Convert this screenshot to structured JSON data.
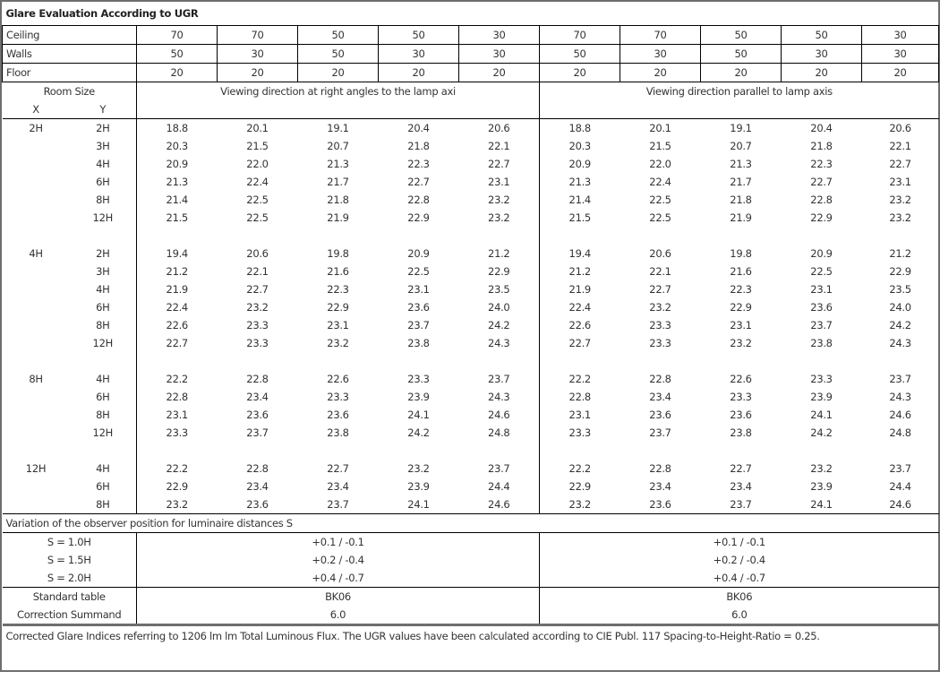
{
  "title": "Glare Evaluation According to UGR",
  "reflectances": [
    {
      "label": "Ceiling",
      "values": [
        "70",
        "70",
        "50",
        "50",
        "30",
        "70",
        "70",
        "50",
        "50",
        "30"
      ]
    },
    {
      "label": "Walls",
      "values": [
        "50",
        "30",
        "50",
        "30",
        "30",
        "50",
        "30",
        "50",
        "30",
        "30"
      ]
    },
    {
      "label": "Floor",
      "values": [
        "20",
        "20",
        "20",
        "20",
        "20",
        "20",
        "20",
        "20",
        "20",
        "20"
      ]
    }
  ],
  "room_size_label": "Room Size",
  "x_label": "X",
  "y_label": "Y",
  "direction_right_angles": "Viewing direction at right angles to the lamp axi",
  "direction_parallel": "Viewing direction parallel to lamp axis",
  "groups": [
    {
      "x": "2H",
      "rows": [
        {
          "y": "2H",
          "values": [
            "18.8",
            "20.1",
            "19.1",
            "20.4",
            "20.6",
            "18.8",
            "20.1",
            "19.1",
            "20.4",
            "20.6"
          ]
        },
        {
          "y": "3H",
          "values": [
            "20.3",
            "21.5",
            "20.7",
            "21.8",
            "22.1",
            "20.3",
            "21.5",
            "20.7",
            "21.8",
            "22.1"
          ]
        },
        {
          "y": "4H",
          "values": [
            "20.9",
            "22.0",
            "21.3",
            "22.3",
            "22.7",
            "20.9",
            "22.0",
            "21.3",
            "22.3",
            "22.7"
          ]
        },
        {
          "y": "6H",
          "values": [
            "21.3",
            "22.4",
            "21.7",
            "22.7",
            "23.1",
            "21.3",
            "22.4",
            "21.7",
            "22.7",
            "23.1"
          ]
        },
        {
          "y": "8H",
          "values": [
            "21.4",
            "22.5",
            "21.8",
            "22.8",
            "23.2",
            "21.4",
            "22.5",
            "21.8",
            "22.8",
            "23.2"
          ]
        },
        {
          "y": "12H",
          "values": [
            "21.5",
            "22.5",
            "21.9",
            "22.9",
            "23.2",
            "21.5",
            "22.5",
            "21.9",
            "22.9",
            "23.2"
          ]
        }
      ]
    },
    {
      "x": "4H",
      "rows": [
        {
          "y": "2H",
          "values": [
            "19.4",
            "20.6",
            "19.8",
            "20.9",
            "21.2",
            "19.4",
            "20.6",
            "19.8",
            "20.9",
            "21.2"
          ]
        },
        {
          "y": "3H",
          "values": [
            "21.2",
            "22.1",
            "21.6",
            "22.5",
            "22.9",
            "21.2",
            "22.1",
            "21.6",
            "22.5",
            "22.9"
          ]
        },
        {
          "y": "4H",
          "values": [
            "21.9",
            "22.7",
            "22.3",
            "23.1",
            "23.5",
            "21.9",
            "22.7",
            "22.3",
            "23.1",
            "23.5"
          ]
        },
        {
          "y": "6H",
          "values": [
            "22.4",
            "23.2",
            "22.9",
            "23.6",
            "24.0",
            "22.4",
            "23.2",
            "22.9",
            "23.6",
            "24.0"
          ]
        },
        {
          "y": "8H",
          "values": [
            "22.6",
            "23.3",
            "23.1",
            "23.7",
            "24.2",
            "22.6",
            "23.3",
            "23.1",
            "23.7",
            "24.2"
          ]
        },
        {
          "y": "12H",
          "values": [
            "22.7",
            "23.3",
            "23.2",
            "23.8",
            "24.3",
            "22.7",
            "23.3",
            "23.2",
            "23.8",
            "24.3"
          ]
        }
      ]
    },
    {
      "x": "8H",
      "rows": [
        {
          "y": "4H",
          "values": [
            "22.2",
            "22.8",
            "22.6",
            "23.3",
            "23.7",
            "22.2",
            "22.8",
            "22.6",
            "23.3",
            "23.7"
          ]
        },
        {
          "y": "6H",
          "values": [
            "22.8",
            "23.4",
            "23.3",
            "23.9",
            "24.3",
            "22.8",
            "23.4",
            "23.3",
            "23.9",
            "24.3"
          ]
        },
        {
          "y": "8H",
          "values": [
            "23.1",
            "23.6",
            "23.6",
            "24.1",
            "24.6",
            "23.1",
            "23.6",
            "23.6",
            "24.1",
            "24.6"
          ]
        },
        {
          "y": "12H",
          "values": [
            "23.3",
            "23.7",
            "23.8",
            "24.2",
            "24.8",
            "23.3",
            "23.7",
            "23.8",
            "24.2",
            "24.8"
          ]
        }
      ]
    },
    {
      "x": "12H",
      "rows": [
        {
          "y": "4H",
          "values": [
            "22.2",
            "22.8",
            "22.7",
            "23.2",
            "23.7",
            "22.2",
            "22.8",
            "22.7",
            "23.2",
            "23.7"
          ]
        },
        {
          "y": "6H",
          "values": [
            "22.9",
            "23.4",
            "23.4",
            "23.9",
            "24.4",
            "22.9",
            "23.4",
            "23.4",
            "23.9",
            "24.4"
          ]
        },
        {
          "y": "8H",
          "values": [
            "23.2",
            "23.6",
            "23.7",
            "24.1",
            "24.6",
            "23.2",
            "23.6",
            "23.7",
            "24.1",
            "24.6"
          ]
        }
      ]
    }
  ],
  "variation_label": "Variation of the observer position for luminaire distances S",
  "variations": [
    {
      "label": "S = 1.0H",
      "right_angles": "+0.1 / -0.1",
      "parallel": "+0.1 / -0.1"
    },
    {
      "label": "S = 1.5H",
      "right_angles": "+0.2 / -0.4",
      "parallel": "+0.2 / -0.4"
    },
    {
      "label": "S = 2.0H",
      "right_angles": "+0.4 / -0.7",
      "parallel": "+0.4 / -0.7"
    }
  ],
  "standard": [
    {
      "label": "Standard table",
      "right_angles": "BK06",
      "parallel": "BK06"
    },
    {
      "label": "Correction Summand",
      "right_angles": "6.0",
      "parallel": "6.0"
    }
  ],
  "footer_note": "Corrected Glare Indices referring to 1206 lm lm Total Luminous Flux. The UGR values have been calculated according to CIE Publ. 117    Spacing-to-Height-Ratio = 0.25."
}
